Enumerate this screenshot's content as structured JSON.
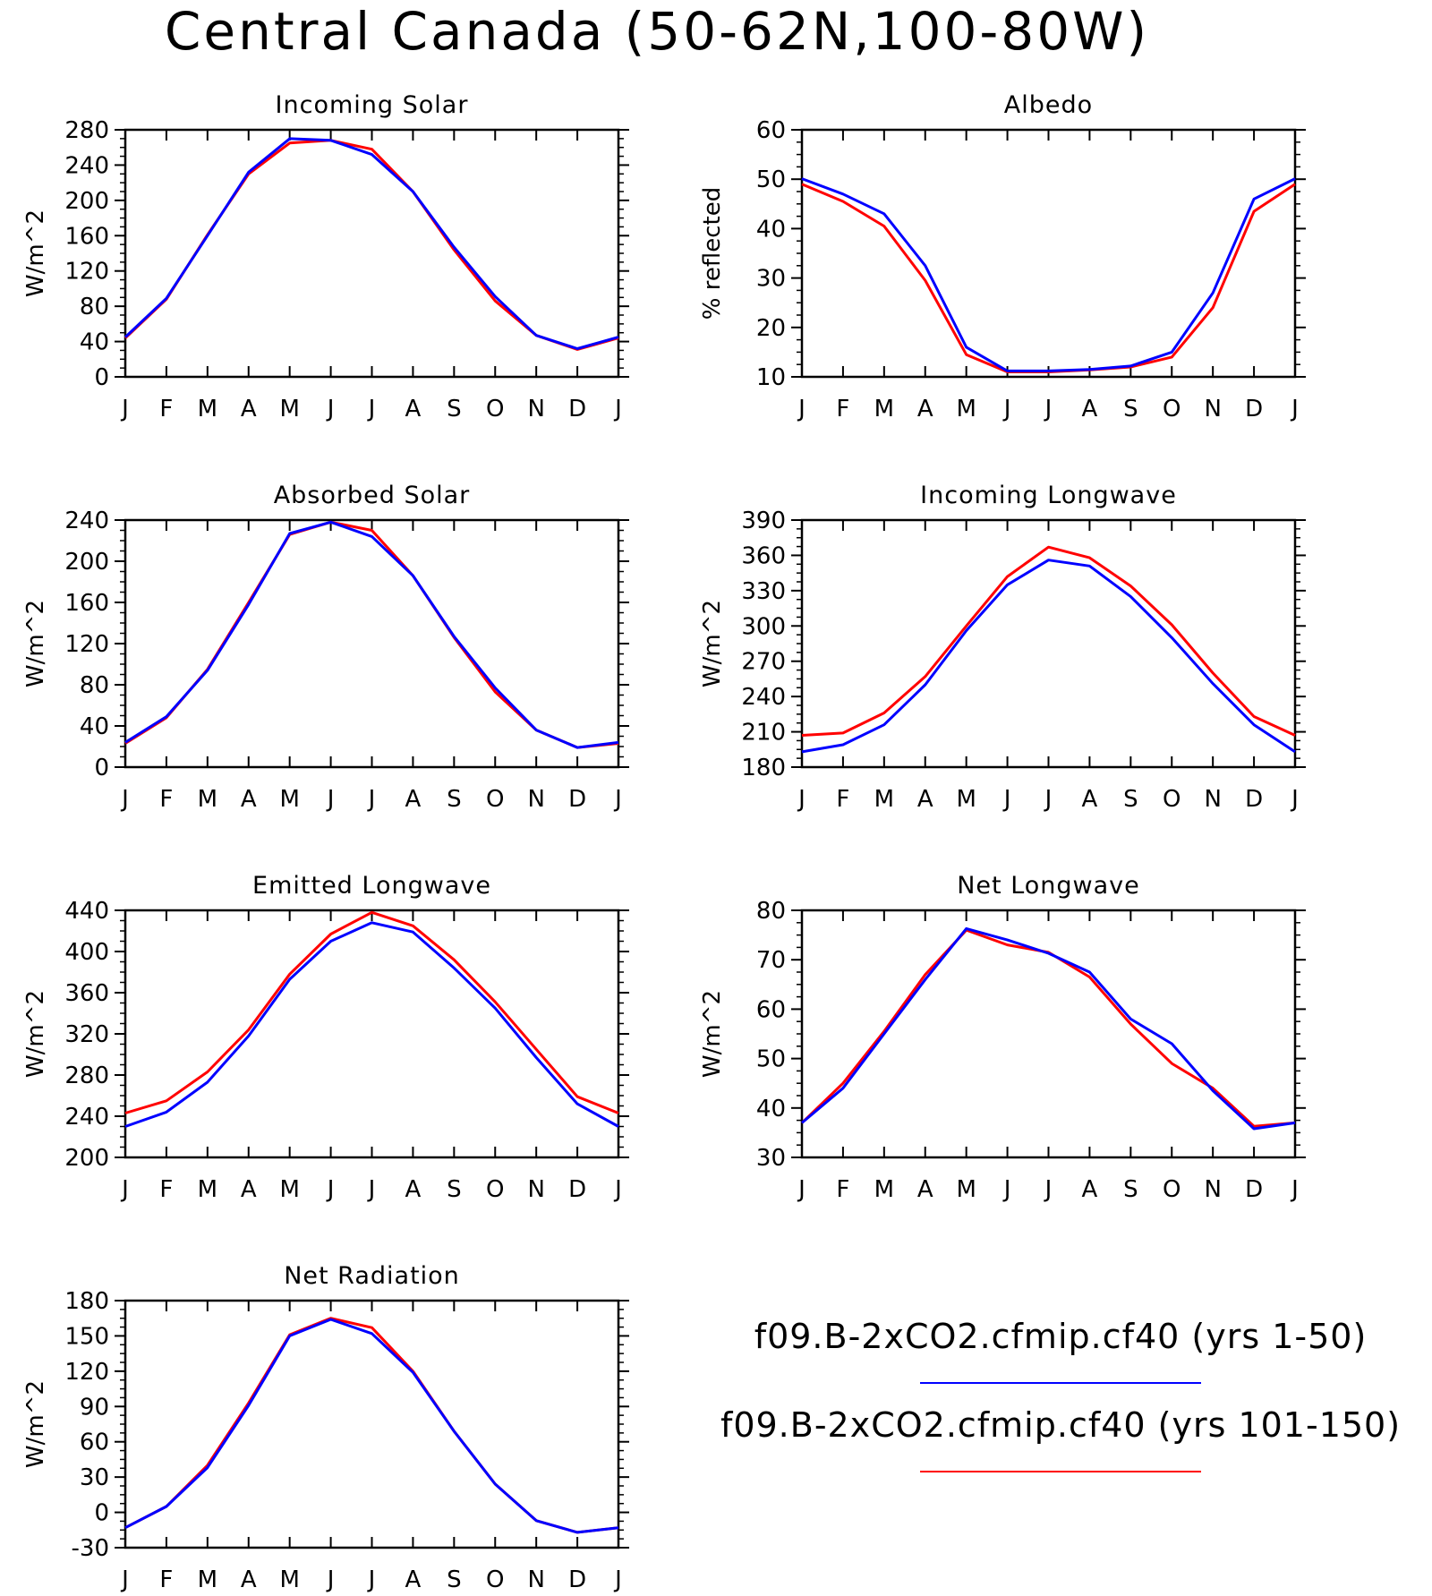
{
  "figure": {
    "title": "Central Canada (50-62N,100-80W)"
  },
  "legend": {
    "entries": [
      {
        "label": "f09.B-2xCO2.cfmip.cf40 (yrs 1-50)",
        "color": "#0000ff"
      },
      {
        "label": "f09.B-2xCO2.cfmip.cf40 (yrs 101-150)",
        "color": "#ff0000"
      }
    ]
  },
  "chart_data": [
    {
      "type": "line",
      "title": "Incoming Solar",
      "ylabel": "W/m^2",
      "xlabel": "",
      "categories": [
        "J",
        "F",
        "M",
        "A",
        "M",
        "J",
        "J",
        "A",
        "S",
        "O",
        "N",
        "D",
        "J"
      ],
      "ylim": [
        0,
        280
      ],
      "yticks": [
        0,
        40,
        80,
        120,
        160,
        200,
        240,
        280
      ],
      "series": [
        {
          "name": "f09.B-2xCO2.cfmip.cf40 (yrs 1-50)",
          "color": "#0000ff",
          "values": [
            45,
            89,
            160,
            232,
            270,
            268,
            252,
            210,
            147,
            91,
            47,
            32,
            45
          ]
        },
        {
          "name": "f09.B-2xCO2.cfmip.cf40 (yrs 101-150)",
          "color": "#ff0000",
          "values": [
            44,
            88,
            161,
            230,
            265,
            268,
            258,
            210,
            144,
            86,
            47,
            31,
            44
          ]
        }
      ]
    },
    {
      "type": "line",
      "title": "Albedo",
      "ylabel": "% reflected",
      "xlabel": "",
      "categories": [
        "J",
        "F",
        "M",
        "A",
        "M",
        "J",
        "J",
        "A",
        "S",
        "O",
        "N",
        "D",
        "J"
      ],
      "ylim": [
        10,
        60
      ],
      "yticks": [
        10,
        20,
        30,
        40,
        50,
        60
      ],
      "series": [
        {
          "name": "f09.B-2xCO2.cfmip.cf40 (yrs 1-50)",
          "color": "#0000ff",
          "values": [
            50.1,
            47,
            43,
            32.5,
            16,
            11.2,
            11.2,
            11.5,
            12.2,
            15,
            27,
            46,
            50.1
          ]
        },
        {
          "name": "f09.B-2xCO2.cfmip.cf40 (yrs 101-150)",
          "color": "#ff0000",
          "values": [
            49,
            45.5,
            40.5,
            29.5,
            14.5,
            11,
            11,
            11.4,
            12,
            14,
            24,
            43.5,
            49
          ]
        }
      ]
    },
    {
      "type": "line",
      "title": "Absorbed Solar",
      "ylabel": "W/m^2",
      "xlabel": "",
      "categories": [
        "J",
        "F",
        "M",
        "A",
        "M",
        "J",
        "J",
        "A",
        "S",
        "O",
        "N",
        "D",
        "J"
      ],
      "ylim": [
        0,
        240
      ],
      "yticks": [
        0,
        40,
        80,
        120,
        160,
        200,
        240
      ],
      "series": [
        {
          "name": "f09.B-2xCO2.cfmip.cf40 (yrs 1-50)",
          "color": "#0000ff",
          "values": [
            24,
            49,
            94,
            158,
            227,
            238,
            224,
            186,
            127,
            77,
            36,
            19,
            24
          ]
        },
        {
          "name": "f09.B-2xCO2.cfmip.cf40 (yrs 101-150)",
          "color": "#ff0000",
          "values": [
            23,
            48,
            95,
            160,
            226,
            238,
            230,
            186,
            126,
            73,
            36,
            19,
            23
          ]
        }
      ]
    },
    {
      "type": "line",
      "title": "Incoming Longwave",
      "ylabel": "W/m^2",
      "xlabel": "",
      "categories": [
        "J",
        "F",
        "M",
        "A",
        "M",
        "J",
        "J",
        "A",
        "S",
        "O",
        "N",
        "D",
        "J"
      ],
      "ylim": [
        180,
        390
      ],
      "yticks": [
        180,
        210,
        240,
        270,
        300,
        330,
        360,
        390
      ],
      "series": [
        {
          "name": "f09.B-2xCO2.cfmip.cf40 (yrs 1-50)",
          "color": "#0000ff",
          "values": [
            193,
            199,
            216,
            250,
            296,
            335,
            356,
            351,
            325,
            290,
            251,
            216,
            193
          ]
        },
        {
          "name": "f09.B-2xCO2.cfmip.cf40 (yrs 101-150)",
          "color": "#ff0000",
          "values": [
            207,
            209,
            226,
            257,
            300,
            342,
            367,
            358,
            334,
            301,
            260,
            223,
            207
          ]
        }
      ]
    },
    {
      "type": "line",
      "title": "Emitted Longwave",
      "ylabel": "W/m^2",
      "xlabel": "",
      "categories": [
        "J",
        "F",
        "M",
        "A",
        "M",
        "J",
        "J",
        "A",
        "S",
        "O",
        "N",
        "D",
        "J"
      ],
      "ylim": [
        200,
        440
      ],
      "yticks": [
        200,
        240,
        280,
        320,
        360,
        400,
        440
      ],
      "series": [
        {
          "name": "f09.B-2xCO2.cfmip.cf40 (yrs 1-50)",
          "color": "#0000ff",
          "values": [
            230,
            244,
            273,
            318,
            373,
            410,
            428,
            419,
            384,
            345,
            297,
            252,
            230
          ]
        },
        {
          "name": "f09.B-2xCO2.cfmip.cf40 (yrs 101-150)",
          "color": "#ff0000",
          "values": [
            243,
            255,
            283,
            324,
            378,
            417,
            438,
            425,
            392,
            351,
            305,
            259,
            243
          ]
        }
      ]
    },
    {
      "type": "line",
      "title": "Net Longwave",
      "ylabel": "W/m^2",
      "xlabel": "",
      "categories": [
        "J",
        "F",
        "M",
        "A",
        "M",
        "J",
        "J",
        "A",
        "S",
        "O",
        "N",
        "D",
        "J"
      ],
      "ylim": [
        30,
        80
      ],
      "yticks": [
        30,
        40,
        50,
        60,
        70,
        80
      ],
      "series": [
        {
          "name": "f09.B-2xCO2.cfmip.cf40 (yrs 1-50)",
          "color": "#0000ff",
          "values": [
            37,
            44,
            55,
            66,
            76.3,
            74,
            71.3,
            67.5,
            58,
            53,
            43.5,
            35.8,
            37
          ]
        },
        {
          "name": "f09.B-2xCO2.cfmip.cf40 (yrs 101-150)",
          "color": "#ff0000",
          "values": [
            37,
            45,
            55.5,
            67,
            76,
            73,
            71.5,
            66.5,
            57,
            49,
            44,
            36.3,
            37
          ]
        }
      ]
    },
    {
      "type": "line",
      "title": "Net Radiation",
      "ylabel": "W/m^2",
      "xlabel": "",
      "categories": [
        "J",
        "F",
        "M",
        "A",
        "M",
        "J",
        "J",
        "A",
        "S",
        "O",
        "N",
        "D",
        "J"
      ],
      "ylim": [
        -30,
        180
      ],
      "yticks": [
        -30,
        0,
        30,
        60,
        90,
        120,
        150,
        180
      ],
      "series": [
        {
          "name": "f09.B-2xCO2.cfmip.cf40 (yrs 1-50)",
          "color": "#0000ff",
          "values": [
            -13,
            5,
            38,
            91,
            150,
            164,
            152,
            119,
            69,
            24,
            -7,
            -17,
            -13
          ]
        },
        {
          "name": "f09.B-2xCO2.cfmip.cf40 (yrs 101-150)",
          "color": "#ff0000",
          "values": [
            -13,
            5,
            40,
            93,
            151,
            165,
            157,
            120,
            69,
            24,
            -7,
            -17,
            -13
          ]
        }
      ]
    }
  ]
}
